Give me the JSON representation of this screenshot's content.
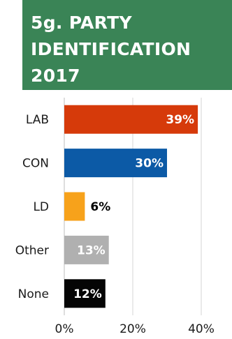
{
  "chart_data": {
    "type": "bar",
    "orientation": "horizontal",
    "title_lines": [
      "5g. PARTY",
      "IDENTIFICATION",
      "2017"
    ],
    "title_background": "#3a8456",
    "categories": [
      "LAB",
      "CON",
      "LD",
      "Other",
      "None"
    ],
    "values": [
      39,
      30,
      6,
      13,
      12
    ],
    "value_labels": [
      "39%",
      "30%",
      "6%",
      "13%",
      "12%"
    ],
    "colors": [
      "#d63a0a",
      "#0c5aa6",
      "#f7a21b",
      "#b0b0b0",
      "#050505"
    ],
    "value_label_colors": [
      "#ffffff",
      "#ffffff",
      "#000000",
      "#ffffff",
      "#ffffff"
    ],
    "value_label_positions": [
      "inside",
      "inside",
      "outside",
      "inside",
      "inside"
    ],
    "xlim": [
      0,
      40
    ],
    "xticks": [
      0,
      20,
      40
    ],
    "xtick_labels": [
      "0%",
      "20%",
      "40%"
    ],
    "grid": true,
    "xlabel": "",
    "ylabel": ""
  }
}
